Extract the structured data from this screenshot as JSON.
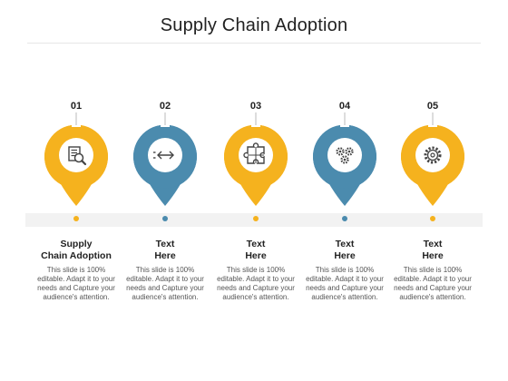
{
  "title": "Supply Chain Adoption",
  "colors": {
    "orange": "#F5B21E",
    "blue": "#4B8BAE",
    "icon_bg": "#ffffff"
  },
  "steps": [
    {
      "number": "01",
      "heading": "Supply\nChain Adoption",
      "text": "This slide is 100% editable. Adapt it to your needs and Capture your audience's attention.",
      "color": "orange",
      "icon": "document-search-icon"
    },
    {
      "number": "02",
      "heading": "Text\nHere",
      "text": "This slide is 100% editable. Adapt it to your needs and Capture your audience's attention.",
      "color": "blue",
      "icon": "arrows-exchange-icon"
    },
    {
      "number": "03",
      "heading": "Text\nHere",
      "text": "This slide is 100% editable. Adapt it to your needs and Capture your audience's attention.",
      "color": "orange",
      "icon": "puzzle-icon"
    },
    {
      "number": "04",
      "heading": "Text\nHere",
      "text": "This slide is 100% editable. Adapt it to your needs and Capture your audience's attention.",
      "color": "blue",
      "icon": "gears-icon"
    },
    {
      "number": "05",
      "heading": "Text\nHere",
      "text": "This slide is 100% editable. Adapt it to your needs and Capture your audience's attention.",
      "color": "orange",
      "icon": "gear-icon"
    }
  ]
}
